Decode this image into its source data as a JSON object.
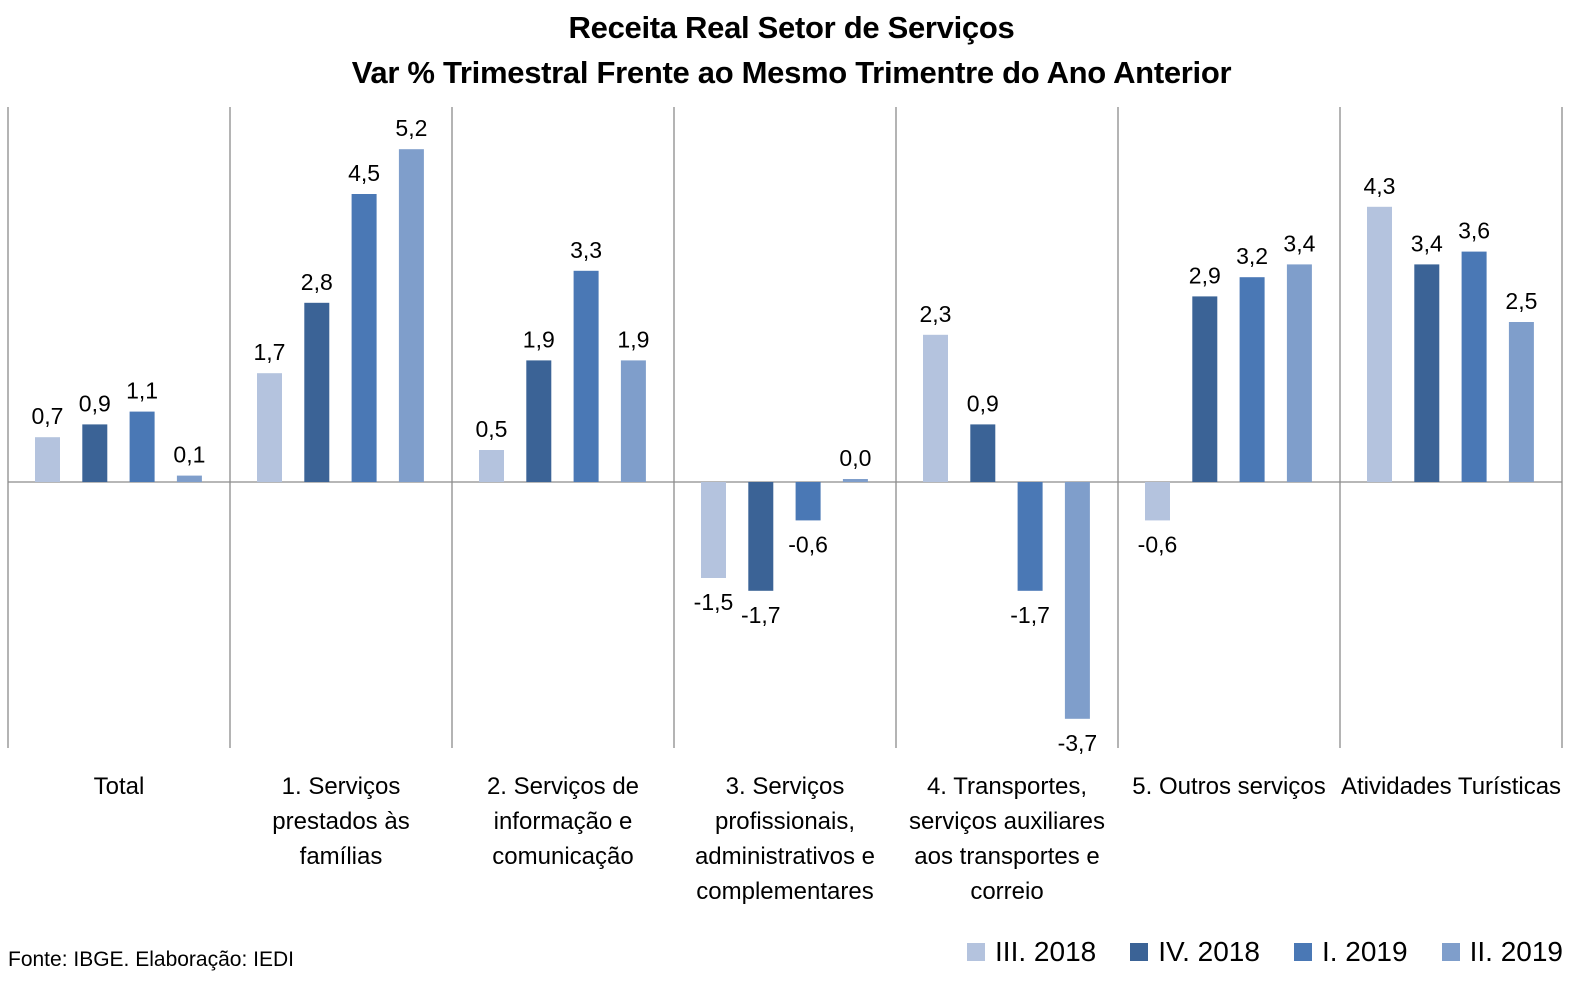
{
  "title": "Receita Real Setor de Serviços",
  "subtitle": "Var % Trimestral Frente ao Mesmo Trimentre do Ano Anterior",
  "source": "Fonte: IBGE. Elaboração: IEDI",
  "chart_data": {
    "type": "bar",
    "title": "Receita Real Setor de Serviços",
    "subtitle": "Var % Trimestral Frente ao Mesmo Trimentre do Ano Anterior",
    "categories": [
      "Total",
      "1. Serviços prestados às famílias",
      "2. Serviços de informação e comunicação",
      "3. Serviços profissionais, administrativos e complementares",
      "4. Transportes, serviços auxiliares aos transportes e correio",
      "5. Outros serviços",
      "Atividades Turísticas"
    ],
    "series": [
      {
        "name": "III. 2018",
        "color": "#b4c3de",
        "values": [
          0.7,
          1.7,
          0.5,
          -1.5,
          2.3,
          -0.6,
          4.3
        ],
        "labels": [
          "0,7",
          "1,7",
          "0,5",
          "-1,5",
          "2,3",
          "-0,6",
          "4,3"
        ]
      },
      {
        "name": "IV. 2018",
        "color": "#3b6396",
        "values": [
          0.9,
          2.8,
          1.9,
          -1.7,
          0.9,
          2.9,
          3.4
        ],
        "labels": [
          "0,9",
          "2,8",
          "1,9",
          "-1,7",
          "0,9",
          "2,9",
          "3,4"
        ]
      },
      {
        "name": "I. 2019",
        "color": "#4a78b5",
        "values": [
          1.1,
          4.5,
          3.3,
          -0.6,
          -1.7,
          3.2,
          3.6
        ],
        "labels": [
          "1,1",
          "4,5",
          "3,3",
          "-0,6",
          "-1,7",
          "3,2",
          "3,6"
        ]
      },
      {
        "name": "II. 2019",
        "color": "#7f9ecb",
        "values": [
          0.1,
          5.2,
          1.9,
          0.0,
          -3.7,
          3.4,
          2.5
        ],
        "labels": [
          "0,1",
          "5,2",
          "1,9",
          "0,0",
          "-3,7",
          "3,4",
          "2,5"
        ]
      }
    ],
    "ylim": [
      -4.2,
      5.9
    ],
    "grid": false,
    "legend_position": "bottom-right"
  }
}
